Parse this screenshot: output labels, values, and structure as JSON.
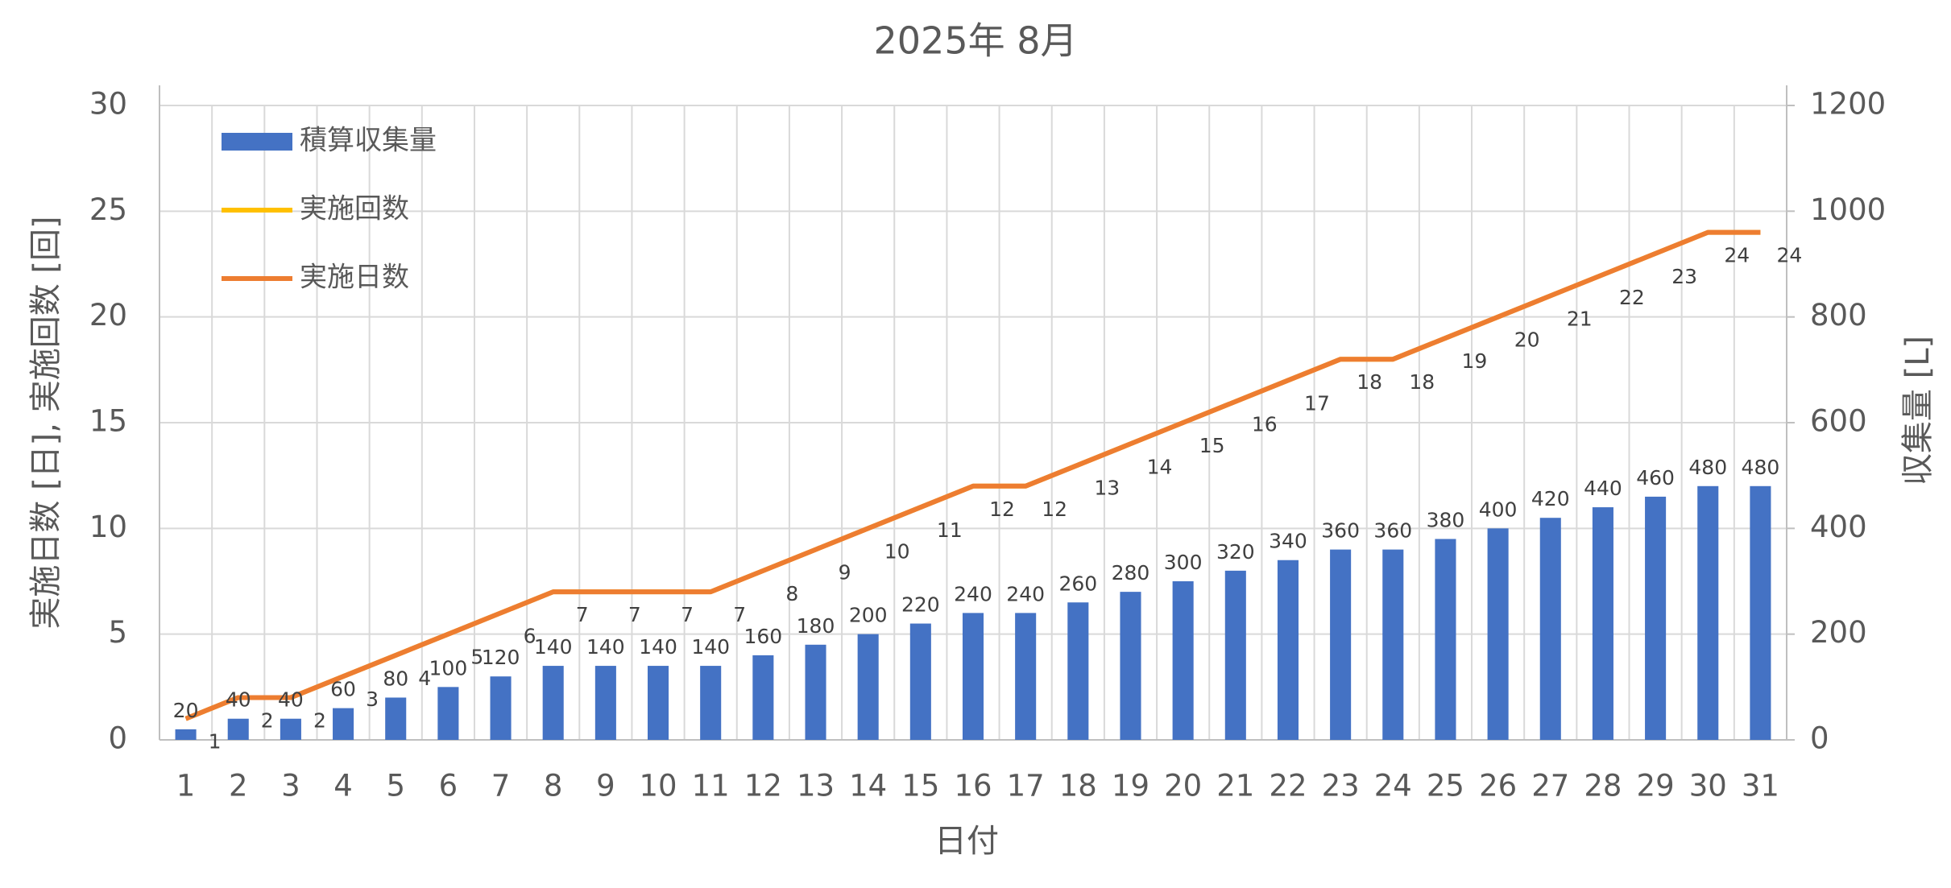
{
  "chart_data": {
    "type": "combo",
    "title": "2025年 8月",
    "x_label": "日付",
    "y_label": "実施日数 [日], 実施回数 [回]",
    "y2_label": "収集量 [L]",
    "categories": [
      "1",
      "2",
      "3",
      "4",
      "5",
      "6",
      "7",
      "8",
      "9",
      "10",
      "11",
      "12",
      "13",
      "14",
      "15",
      "16",
      "17",
      "18",
      "19",
      "20",
      "21",
      "22",
      "23",
      "24",
      "25",
      "26",
      "27",
      "28",
      "29",
      "30",
      "31"
    ],
    "ylim": [
      0,
      30
    ],
    "yticks": [
      0,
      5,
      10,
      15,
      20,
      25,
      30
    ],
    "y2lim": [
      0,
      1200
    ],
    "y2ticks": [
      0,
      200,
      400,
      600,
      800,
      1000,
      1200
    ],
    "grid": true,
    "series": [
      {
        "name": "積算収集量",
        "type": "bar",
        "axis": "y2",
        "color": "#4472c4",
        "values": [
          20,
          40,
          40,
          60,
          80,
          100,
          120,
          140,
          140,
          140,
          140,
          160,
          180,
          200,
          220,
          240,
          240,
          260,
          280,
          300,
          320,
          340,
          360,
          360,
          380,
          400,
          420,
          440,
          460,
          480,
          480
        ]
      },
      {
        "name": "実施回数",
        "type": "line",
        "axis": "y",
        "color": "#ffc000",
        "values": [
          1,
          2,
          2,
          3,
          4,
          5,
          6,
          7,
          7,
          7,
          7,
          8,
          9,
          10,
          11,
          12,
          12,
          13,
          14,
          15,
          16,
          17,
          18,
          18,
          19,
          20,
          21,
          22,
          23,
          24,
          24
        ]
      },
      {
        "name": "実施日数",
        "type": "line",
        "axis": "y",
        "color": "#ed7d31",
        "values": [
          1,
          2,
          2,
          3,
          4,
          5,
          6,
          7,
          7,
          7,
          7,
          8,
          9,
          10,
          11,
          12,
          12,
          13,
          14,
          15,
          16,
          17,
          18,
          18,
          19,
          20,
          21,
          22,
          23,
          24,
          24
        ]
      }
    ]
  }
}
